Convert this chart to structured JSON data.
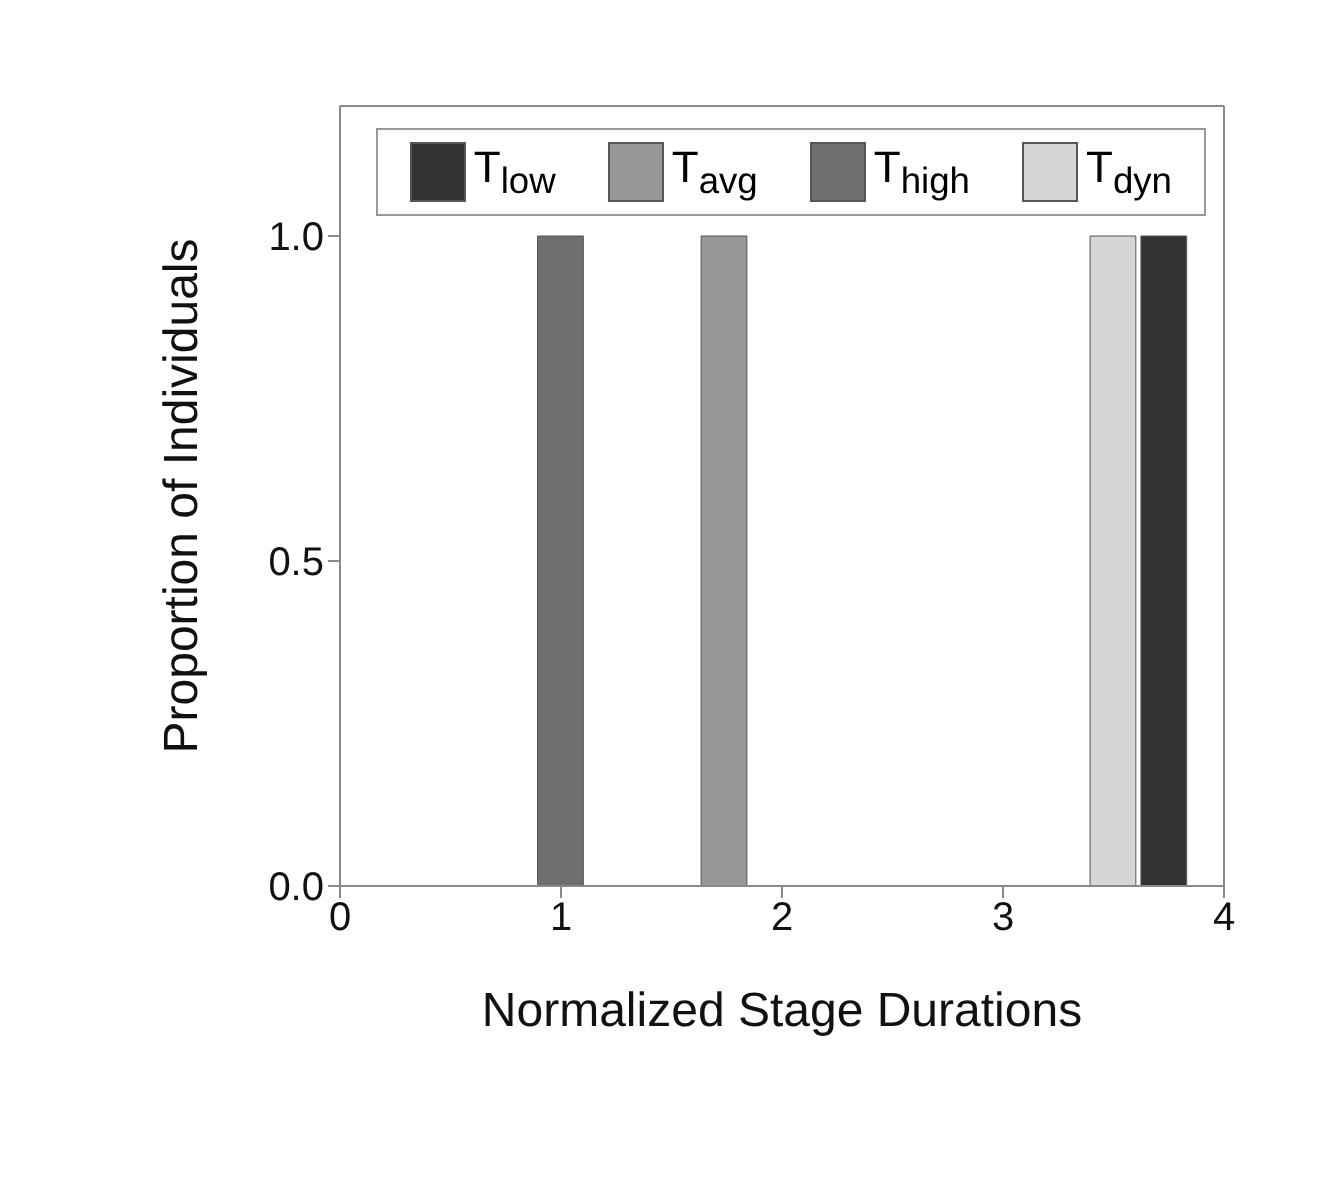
{
  "chart_data": {
    "type": "bar",
    "xlabel": "Normalized Stage Durations",
    "ylabel": "Proportion of Individuals",
    "series": [
      {
        "name": "T$_{low}$",
        "color": "#333333",
        "x": [
          3.73
        ],
        "values": [
          1.0
        ]
      },
      {
        "name": "T$_{avg}$",
        "color": "#979797",
        "x": [
          1.74
        ],
        "values": [
          1.0
        ]
      },
      {
        "name": "T$_{high}$",
        "color": "#6f6f6f",
        "x": [
          1.0
        ],
        "values": [
          1.0
        ]
      },
      {
        "name": "T$_{dyn}$",
        "color": "#d6d6d6",
        "x": [
          3.5
        ],
        "values": [
          1.0
        ]
      }
    ],
    "xlim": [
      0,
      4
    ],
    "xticks": [
      0,
      1,
      2,
      3,
      4
    ],
    "ylim": [
      0,
      1.2
    ],
    "yticks": [
      {
        "value": 0,
        "label": "0.0"
      },
      {
        "value": 0.5,
        "label": "0.5"
      },
      {
        "value": 1,
        "label": "1.0"
      }
    ],
    "legend": "top",
    "grid": false
  }
}
